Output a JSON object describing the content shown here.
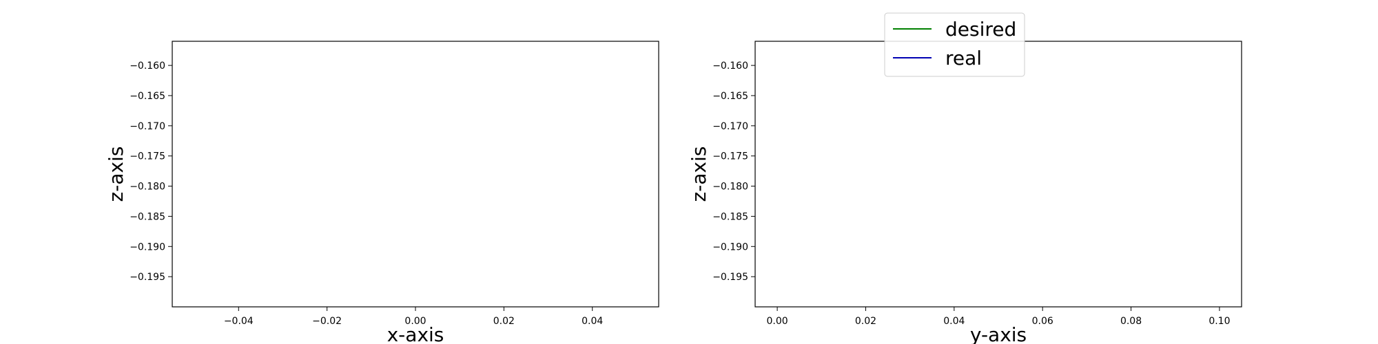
{
  "chart_data": [
    {
      "type": "line",
      "title": "",
      "xlabel": "x-axis",
      "ylabel": "z-axis",
      "xlim": [
        -0.055,
        0.055
      ],
      "ylim": [
        -0.2,
        -0.156
      ],
      "xticks": [
        -0.04,
        -0.02,
        0.0,
        0.02,
        0.04
      ],
      "xtick_labels": [
        "−0.04",
        "−0.02",
        "0.00",
        "0.02",
        "0.04"
      ],
      "yticks": [
        -0.16,
        -0.165,
        -0.17,
        -0.175,
        -0.18,
        -0.185,
        -0.19,
        -0.195
      ],
      "ytick_labels": [
        "−0.160",
        "−0.165",
        "−0.170",
        "−0.175",
        "−0.180",
        "−0.185",
        "−0.190",
        "−0.195"
      ],
      "grid": false,
      "series": []
    },
    {
      "type": "line",
      "title": "",
      "xlabel": "y-axis",
      "ylabel": "z-axis",
      "xlim": [
        -0.005,
        0.105
      ],
      "ylim": [
        -0.2,
        -0.156
      ],
      "xticks": [
        0.0,
        0.02,
        0.04,
        0.06,
        0.08,
        0.1
      ],
      "xtick_labels": [
        "0.00",
        "0.02",
        "0.04",
        "0.06",
        "0.08",
        "0.10"
      ],
      "yticks": [
        -0.16,
        -0.165,
        -0.17,
        -0.175,
        -0.18,
        -0.185,
        -0.19,
        -0.195
      ],
      "ytick_labels": [
        "−0.160",
        "−0.165",
        "−0.170",
        "−0.175",
        "−0.180",
        "−0.185",
        "−0.190",
        "−0.195"
      ],
      "grid": false,
      "series": []
    }
  ],
  "legend": {
    "placement": "top-center",
    "entries": [
      {
        "label": "desired",
        "color": "#008000"
      },
      {
        "label": "real",
        "color": "#0000b3"
      }
    ]
  }
}
